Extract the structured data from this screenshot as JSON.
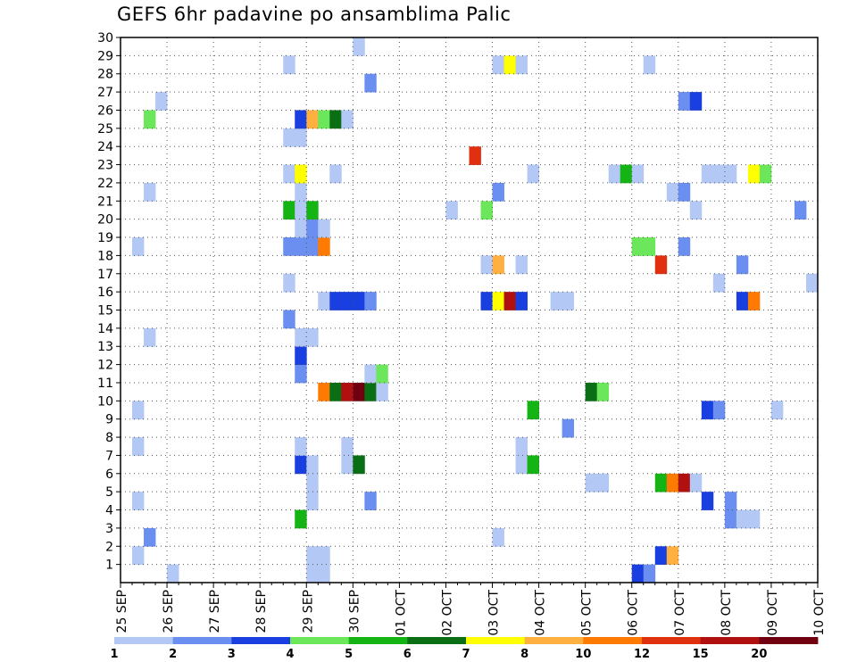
{
  "chart_data": {
    "type": "heatmap",
    "title": "GEFS 6hr padavine po ansamblima Palic",
    "xlabel": "",
    "ylabel": "",
    "x_ticks": [
      "25 SEP",
      "26 SEP",
      "27 SEP",
      "28 SEP",
      "29 SEP",
      "30 SEP",
      "01 OCT",
      "02 OCT",
      "03 OCT",
      "04 OCT",
      "05 OCT",
      "06 OCT",
      "07 OCT",
      "08 OCT",
      "09 OCT",
      "10 OCT"
    ],
    "y_ticks": [
      1,
      2,
      3,
      4,
      5,
      6,
      7,
      8,
      9,
      10,
      11,
      12,
      13,
      14,
      15,
      16,
      17,
      18,
      19,
      20,
      21,
      22,
      23,
      24,
      25,
      26,
      27,
      28,
      29,
      30
    ],
    "xlim_days": [
      0,
      15
    ],
    "ylim": [
      0,
      30
    ],
    "cell_days": 0.25,
    "grid": true,
    "legend": {
      "position": "bottom",
      "labels": [
        "1",
        "2",
        "3",
        "4",
        "5",
        "6",
        "7",
        "8",
        "10",
        "12",
        "15",
        "20"
      ],
      "colors": [
        "#b4c8f5",
        "#6a8ff0",
        "#1a3fe0",
        "#6ce65a",
        "#14b414",
        "#0a6e14",
        "#ffff00",
        "#ffb040",
        "#ff7a00",
        "#e03010",
        "#b01010",
        "#700010"
      ]
    },
    "cells": [
      [
        1,
        0,
        "#b4c8f5"
      ],
      [
        4,
        0,
        "#b4c8f5"
      ],
      [
        4.25,
        0,
        "#b4c8f5"
      ],
      [
        11,
        0,
        "#1a3fe0"
      ],
      [
        11.25,
        0,
        "#6a8ff0"
      ],
      [
        0.25,
        1,
        "#b4c8f5"
      ],
      [
        4,
        1,
        "#b4c8f5"
      ],
      [
        4.25,
        1,
        "#b4c8f5"
      ],
      [
        11.5,
        1,
        "#1a3fe0"
      ],
      [
        11.75,
        1,
        "#ffb040"
      ],
      [
        0.5,
        2,
        "#6a8ff0"
      ],
      [
        8,
        2,
        "#b4c8f5"
      ],
      [
        3.75,
        3,
        "#14b414"
      ],
      [
        13,
        3,
        "#6a8ff0"
      ],
      [
        13.25,
        3,
        "#b4c8f5"
      ],
      [
        13.5,
        3,
        "#b4c8f5"
      ],
      [
        0.25,
        4,
        "#b4c8f5"
      ],
      [
        4,
        4,
        "#b4c8f5"
      ],
      [
        5.25,
        4,
        "#6a8ff0"
      ],
      [
        12.5,
        4,
        "#1a3fe0"
      ],
      [
        13,
        4,
        "#6a8ff0"
      ],
      [
        4,
        5,
        "#b4c8f5"
      ],
      [
        10,
        5,
        "#b4c8f5"
      ],
      [
        10.25,
        5,
        "#b4c8f5"
      ],
      [
        11.5,
        5,
        "#14b414"
      ],
      [
        11.75,
        5,
        "#ff7a00"
      ],
      [
        12,
        5,
        "#b01010"
      ],
      [
        12.25,
        5,
        "#b4c8f5"
      ],
      [
        3.75,
        6,
        "#1a3fe0"
      ],
      [
        4,
        6,
        "#b4c8f5"
      ],
      [
        4.75,
        6,
        "#b4c8f5"
      ],
      [
        5,
        6,
        "#0a6e14"
      ],
      [
        8.5,
        6,
        "#b4c8f5"
      ],
      [
        8.75,
        6,
        "#14b414"
      ],
      [
        0.25,
        7,
        "#b4c8f5"
      ],
      [
        3.75,
        7,
        "#b4c8f5"
      ],
      [
        4.75,
        7,
        "#b4c8f5"
      ],
      [
        8.5,
        7,
        "#b4c8f5"
      ],
      [
        9.5,
        8,
        "#6a8ff0"
      ],
      [
        0.25,
        9,
        "#b4c8f5"
      ],
      [
        8.75,
        9,
        "#14b414"
      ],
      [
        12.5,
        9,
        "#1a3fe0"
      ],
      [
        12.75,
        9,
        "#6a8ff0"
      ],
      [
        14,
        9,
        "#b4c8f5"
      ],
      [
        4.25,
        10,
        "#ff7a00"
      ],
      [
        4.5,
        10,
        "#0a6e14"
      ],
      [
        4.75,
        10,
        "#b01010"
      ],
      [
        5,
        10,
        "#700010"
      ],
      [
        5.25,
        10,
        "#0a6e14"
      ],
      [
        5.5,
        10,
        "#b4c8f5"
      ],
      [
        10,
        10,
        "#0a6e14"
      ],
      [
        10.25,
        10,
        "#6ce65a"
      ],
      [
        3.75,
        11,
        "#6a8ff0"
      ],
      [
        5.25,
        11,
        "#b4c8f5"
      ],
      [
        5.5,
        11,
        "#6ce65a"
      ],
      [
        3.75,
        12,
        "#1a3fe0"
      ],
      [
        0.5,
        13,
        "#b4c8f5"
      ],
      [
        3.75,
        13,
        "#b4c8f5"
      ],
      [
        4,
        13,
        "#b4c8f5"
      ],
      [
        3.5,
        14,
        "#6a8ff0"
      ],
      [
        4.25,
        15,
        "#b4c8f5"
      ],
      [
        4.5,
        15,
        "#1a3fe0"
      ],
      [
        4.75,
        15,
        "#1a3fe0"
      ],
      [
        5,
        15,
        "#1a3fe0"
      ],
      [
        5.25,
        15,
        "#6a8ff0"
      ],
      [
        7.75,
        15,
        "#1a3fe0"
      ],
      [
        8,
        15,
        "#ffff00"
      ],
      [
        8.25,
        15,
        "#b01010"
      ],
      [
        8.5,
        15,
        "#1a3fe0"
      ],
      [
        9.25,
        15,
        "#b4c8f5"
      ],
      [
        9.5,
        15,
        "#b4c8f5"
      ],
      [
        13.25,
        15,
        "#1a3fe0"
      ],
      [
        13.5,
        15,
        "#ff7a00"
      ],
      [
        3.5,
        16,
        "#b4c8f5"
      ],
      [
        12.75,
        16,
        "#b4c8f5"
      ],
      [
        14.75,
        16,
        "#b4c8f5"
      ],
      [
        7.75,
        17,
        "#b4c8f5"
      ],
      [
        8,
        17,
        "#ffb040"
      ],
      [
        8.5,
        17,
        "#b4c8f5"
      ],
      [
        11.5,
        17,
        "#e03010"
      ],
      [
        13.25,
        17,
        "#6a8ff0"
      ],
      [
        0.25,
        18,
        "#b4c8f5"
      ],
      [
        3.5,
        18,
        "#6a8ff0"
      ],
      [
        3.75,
        18,
        "#6a8ff0"
      ],
      [
        4,
        18,
        "#6a8ff0"
      ],
      [
        4.25,
        18,
        "#ff7a00"
      ],
      [
        11,
        18,
        "#6ce65a"
      ],
      [
        11.25,
        18,
        "#6ce65a"
      ],
      [
        12,
        18,
        "#6a8ff0"
      ],
      [
        3.75,
        19,
        "#b4c8f5"
      ],
      [
        4,
        19,
        "#6a8ff0"
      ],
      [
        4.25,
        19,
        "#b4c8f5"
      ],
      [
        3.5,
        20,
        "#14b414"
      ],
      [
        3.75,
        20,
        "#b4c8f5"
      ],
      [
        4,
        20,
        "#14b414"
      ],
      [
        7,
        20,
        "#b4c8f5"
      ],
      [
        7.75,
        20,
        "#6ce65a"
      ],
      [
        12.25,
        20,
        "#b4c8f5"
      ],
      [
        14.5,
        20,
        "#6a8ff0"
      ],
      [
        0.5,
        21,
        "#b4c8f5"
      ],
      [
        3.75,
        21,
        "#b4c8f5"
      ],
      [
        8,
        21,
        "#6a8ff0"
      ],
      [
        11.75,
        21,
        "#b4c8f5"
      ],
      [
        12,
        21,
        "#6a8ff0"
      ],
      [
        3.5,
        22,
        "#b4c8f5"
      ],
      [
        3.75,
        22,
        "#ffff00"
      ],
      [
        4.5,
        22,
        "#b4c8f5"
      ],
      [
        8.75,
        22,
        "#b4c8f5"
      ],
      [
        10.5,
        22,
        "#b4c8f5"
      ],
      [
        10.75,
        22,
        "#14b414"
      ],
      [
        11,
        22,
        "#b4c8f5"
      ],
      [
        12.5,
        22,
        "#b4c8f5"
      ],
      [
        12.75,
        22,
        "#b4c8f5"
      ],
      [
        13,
        22,
        "#b4c8f5"
      ],
      [
        13.5,
        22,
        "#ffff00"
      ],
      [
        13.75,
        22,
        "#6ce65a"
      ],
      [
        7.5,
        23,
        "#e03010"
      ],
      [
        3.5,
        24,
        "#b4c8f5"
      ],
      [
        3.75,
        24,
        "#b4c8f5"
      ],
      [
        0.5,
        25,
        "#6ce65a"
      ],
      [
        3.75,
        25,
        "#1a3fe0"
      ],
      [
        4,
        25,
        "#ffb040"
      ],
      [
        4.25,
        25,
        "#6ce65a"
      ],
      [
        4.5,
        25,
        "#0a6e14"
      ],
      [
        4.75,
        25,
        "#b4c8f5"
      ],
      [
        0.75,
        26,
        "#b4c8f5"
      ],
      [
        12,
        26,
        "#6a8ff0"
      ],
      [
        12.25,
        26,
        "#1a3fe0"
      ],
      [
        5.25,
        27,
        "#6a8ff0"
      ],
      [
        3.5,
        28,
        "#b4c8f5"
      ],
      [
        8,
        28,
        "#b4c8f5"
      ],
      [
        8.25,
        28,
        "#ffff00"
      ],
      [
        8.5,
        28,
        "#b4c8f5"
      ],
      [
        11.25,
        28,
        "#b4c8f5"
      ],
      [
        5,
        29,
        "#b4c8f5"
      ]
    ]
  }
}
